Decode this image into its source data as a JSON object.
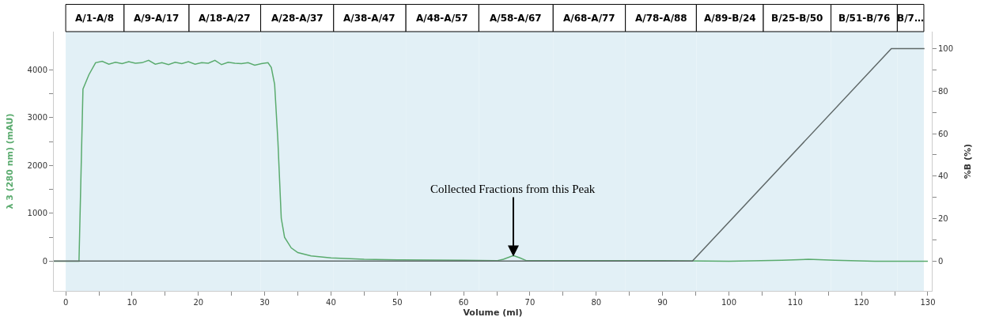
{
  "chart_data": {
    "type": "line",
    "xlabel": "Volume (ml)",
    "ylabel": "λ 3 (280 nm) (mAU)",
    "y2label": "%B (%)",
    "xlim": [
      -1.8,
      130.6
    ],
    "ylim": [
      -620,
      4800
    ],
    "y2lim": [
      -14,
      108
    ],
    "xticks": [
      0,
      {
        "value": 5,
        "label": null
      },
      10,
      {
        "value": 15,
        "label": null
      },
      20,
      {
        "value": 25,
        "label": null
      },
      30,
      {
        "value": 35,
        "label": null
      },
      40,
      {
        "value": 45,
        "label": null
      },
      50,
      {
        "value": 55,
        "label": null
      },
      60,
      {
        "value": 65,
        "label": null
      },
      70,
      {
        "value": 75,
        "label": null
      },
      80,
      {
        "value": 85,
        "label": null
      },
      90,
      {
        "value": 95,
        "label": null
      },
      100,
      {
        "value": 105,
        "label": null
      },
      110,
      {
        "value": 115,
        "label": null
      },
      120,
      {
        "value": 125,
        "label": null
      },
      130
    ],
    "yticks": [
      0,
      {
        "value": 500,
        "label": null
      },
      1000,
      {
        "value": 1500,
        "label": null
      },
      2000,
      {
        "value": 2500,
        "label": null
      },
      3000,
      {
        "value": 3500,
        "label": null
      },
      4000
    ],
    "y2ticks": [
      0,
      {
        "value": 10,
        "label": null
      },
      20,
      {
        "value": 30,
        "label": null
      },
      40,
      {
        "value": 50,
        "label": null
      },
      60,
      {
        "value": 70,
        "label": null
      },
      80,
      {
        "value": 90,
        "label": null
      },
      100
    ],
    "series": [
      {
        "color": "#5aab6e",
        "x": [
          -1.8,
          2,
          2.6,
          3.5,
          4.5,
          5.5,
          6.5,
          7.5,
          8.5,
          9.5,
          10.5,
          11.5,
          12.5,
          13.5,
          14.5,
          15.5,
          16.5,
          17.5,
          18.5,
          19.5,
          20.5,
          21.5,
          22.5,
          23.5,
          24.5,
          25.5,
          26.5,
          27.5,
          28.5,
          29.5,
          30.5,
          31,
          31.5,
          32,
          32.5,
          33,
          34,
          35,
          37,
          40,
          45,
          50,
          60,
          65,
          66,
          67.5,
          68.5,
          69.5,
          75,
          90,
          100,
          108,
          112,
          116,
          122,
          130
        ],
        "values": [
          0,
          0,
          3600,
          3900,
          4150,
          4180,
          4120,
          4160,
          4130,
          4170,
          4140,
          4150,
          4200,
          4120,
          4150,
          4110,
          4160,
          4130,
          4170,
          4120,
          4150,
          4140,
          4200,
          4110,
          4160,
          4140,
          4130,
          4150,
          4100,
          4130,
          4150,
          4050,
          3700,
          2500,
          900,
          500,
          280,
          180,
          110,
          70,
          40,
          30,
          20,
          10,
          40,
          120,
          70,
          10,
          10,
          10,
          0,
          20,
          40,
          20,
          0,
          0
        ]
      },
      {
        "color": "#5f6868",
        "axis": "y2",
        "x": [
          -1.8,
          94.5,
          124.5,
          129.5
        ],
        "values": [
          0,
          0,
          100,
          100
        ]
      }
    ],
    "bands": [
      {
        "axis": "x",
        "from": 0,
        "to": 8.8,
        "label": "A/1-A/8",
        "color": "#e2f0f6"
      },
      {
        "axis": "x",
        "from": 8.8,
        "to": 18.6,
        "label": "A/9-A/17",
        "color": "#e2f0f6"
      },
      {
        "axis": "x",
        "from": 18.6,
        "to": 29.4,
        "label": "A/18-A/27",
        "color": "#e2f0f6"
      },
      {
        "axis": "x",
        "from": 29.4,
        "to": 40.4,
        "label": "A/28-A/37",
        "color": "#e2f0f6"
      },
      {
        "axis": "x",
        "from": 40.4,
        "to": 51.3,
        "label": "A/38-A/47",
        "color": "#e2f0f6"
      },
      {
        "axis": "x",
        "from": 51.3,
        "to": 62.3,
        "label": "A/48-A/57",
        "color": "#e2f0f6"
      },
      {
        "axis": "x",
        "from": 62.3,
        "to": 73.5,
        "label": "A/58-A/67",
        "color": "#e2f0f6"
      },
      {
        "axis": "x",
        "from": 73.5,
        "to": 84.4,
        "label": "A/68-A/77",
        "color": "#e2f0f6"
      },
      {
        "axis": "x",
        "from": 84.4,
        "to": 95.1,
        "label": "A/78-A/88",
        "color": "#e2f0f6"
      },
      {
        "axis": "x",
        "from": 95.1,
        "to": 105.2,
        "label": "A/89-B/24",
        "color": "#e2f0f6"
      },
      {
        "axis": "x",
        "from": 105.2,
        "to": 115.4,
        "label": "B/25-B/50",
        "color": "#e2f0f6"
      },
      {
        "axis": "x",
        "from": 115.4,
        "to": 125.4,
        "label": "B/51-B/76",
        "color": "#e2f0f6"
      },
      {
        "axis": "x",
        "from": 125.4,
        "to": 129.4,
        "label": "B/7…",
        "color": "#e2f0f6"
      }
    ],
    "annotations": [
      {
        "text": "Collected Fractions from this Peak",
        "x": 67.5,
        "y": 100
      }
    ],
    "grid": false
  }
}
